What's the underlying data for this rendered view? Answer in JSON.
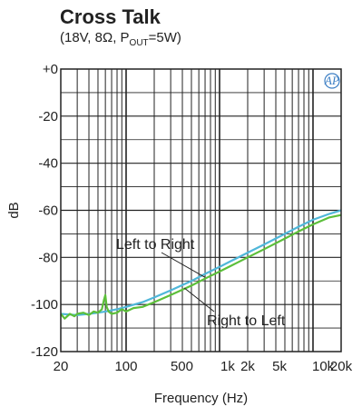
{
  "chart_data": {
    "type": "line",
    "title": "Cross Talk",
    "subtitle_parts": [
      "(18V, 8Ω, P",
      "OUT",
      "=5W)"
    ],
    "xlabel": "Frequency (Hz)",
    "ylabel": "dB",
    "xscale": "log",
    "xlim": [
      20,
      20000
    ],
    "ylim": [
      -120,
      0
    ],
    "grid": true,
    "y_ticks": [
      {
        "v": 0,
        "label": "+0"
      },
      {
        "v": -20,
        "label": "-20"
      },
      {
        "v": -40,
        "label": "-40"
      },
      {
        "v": -60,
        "label": "-60"
      },
      {
        "v": -80,
        "label": "-80"
      },
      {
        "v": -100,
        "label": "-100"
      },
      {
        "v": -120,
        "label": "-120"
      }
    ],
    "x_ticks": [
      {
        "v": 20,
        "label": "20"
      },
      {
        "v": 100,
        "label": "100"
      },
      {
        "v": 500,
        "label": "500"
      },
      {
        "v": 1000,
        "label": "1k"
      },
      {
        "v": 2000,
        "label": "2k"
      },
      {
        "v": 5000,
        "label": "5k"
      },
      {
        "v": 10000,
        "label": "10k"
      },
      {
        "v": 20000,
        "label": "20k"
      }
    ],
    "series": [
      {
        "name": "Left to Right",
        "color": "#4fb7d9",
        "points": [
          [
            20,
            -104
          ],
          [
            30,
            -104.5
          ],
          [
            40,
            -104
          ],
          [
            50,
            -103.5
          ],
          [
            60,
            -103
          ],
          [
            70,
            -102.5
          ],
          [
            80,
            -102
          ],
          [
            100,
            -101
          ],
          [
            150,
            -99
          ],
          [
            200,
            -97
          ],
          [
            300,
            -94
          ],
          [
            500,
            -90
          ],
          [
            700,
            -87
          ],
          [
            1000,
            -84
          ],
          [
            1500,
            -80.5
          ],
          [
            2000,
            -78
          ],
          [
            3000,
            -74.5
          ],
          [
            5000,
            -70
          ],
          [
            7000,
            -67
          ],
          [
            10000,
            -64
          ],
          [
            15000,
            -61.5
          ],
          [
            20000,
            -60
          ]
        ]
      },
      {
        "name": "Right to Left",
        "color": "#5cbf3a",
        "points": [
          [
            20,
            -104
          ],
          [
            22,
            -106
          ],
          [
            25,
            -104
          ],
          [
            28,
            -105
          ],
          [
            30,
            -104
          ],
          [
            35,
            -103.5
          ],
          [
            40,
            -104.5
          ],
          [
            45,
            -103
          ],
          [
            50,
            -103.5
          ],
          [
            55,
            -102
          ],
          [
            58,
            -98
          ],
          [
            60,
            -96
          ],
          [
            62,
            -101
          ],
          [
            65,
            -103
          ],
          [
            70,
            -104
          ],
          [
            80,
            -103.5
          ],
          [
            90,
            -102
          ],
          [
            100,
            -103
          ],
          [
            120,
            -101.5
          ],
          [
            150,
            -101
          ],
          [
            200,
            -99
          ],
          [
            300,
            -96
          ],
          [
            500,
            -92
          ],
          [
            700,
            -89
          ],
          [
            1000,
            -86
          ],
          [
            1500,
            -82.5
          ],
          [
            2000,
            -80
          ],
          [
            3000,
            -76.5
          ],
          [
            5000,
            -72
          ],
          [
            7000,
            -69
          ],
          [
            10000,
            -66
          ],
          [
            15000,
            -63
          ],
          [
            20000,
            -62
          ]
        ]
      }
    ],
    "annotations": [
      {
        "text": "Left to Right",
        "series": "Left to Right"
      },
      {
        "text": "Right to Left",
        "series": "Right to Left"
      }
    ],
    "logo_text": "AP"
  }
}
